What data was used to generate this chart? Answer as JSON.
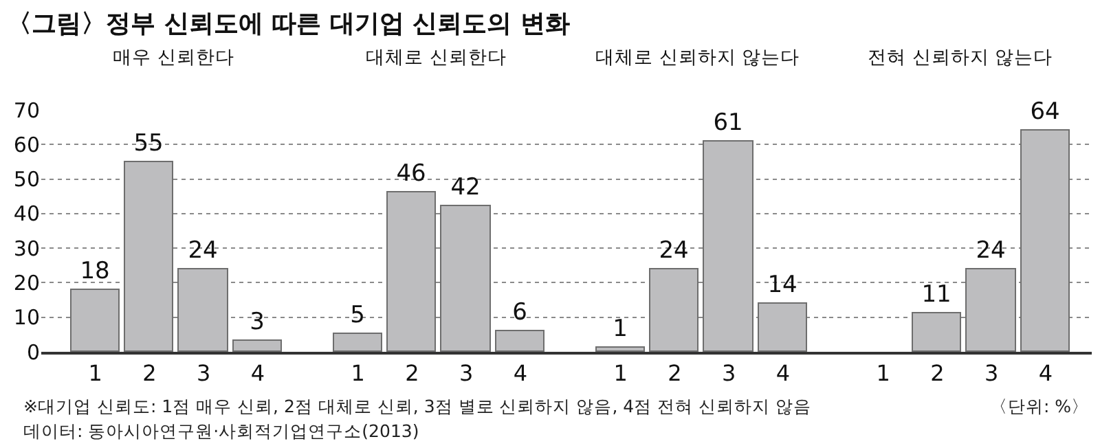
{
  "chart_data": [
    {
      "type": "other",
      "title": "〈그림〉정부 신뢰도에 따른 대기업 신뢰도의 변화",
      "annotations": [
        "※대기업 신뢰도: 1점 매우 신뢰, 2점 대체로 신뢰, 3점 별로 신뢰하지 않음, 4점 전혀 신뢰하지 않음",
        "〈단위: %〉",
        "데이터: 동아시아연구원·사회적기업연구소(2013)"
      ]
    },
    {
      "type": "bar",
      "title": "매우 신뢰한다",
      "categories": [
        "1",
        "2",
        "3",
        "4"
      ],
      "values": [
        18,
        55,
        24,
        3
      ],
      "color": "#bdbdbf",
      "ylim": [
        0,
        70
      ],
      "yticks": [
        0,
        10,
        20,
        30,
        40,
        50,
        60,
        70
      ],
      "grid": "y",
      "line_style": "dotted",
      "data_labels": true
    },
    {
      "type": "bar",
      "title": "대체로 신뢰한다",
      "categories": [
        "1",
        "2",
        "3",
        "4"
      ],
      "values": [
        5,
        46,
        42,
        6
      ],
      "color": "#bdbdbf",
      "ylim": [
        0,
        70
      ],
      "yticks": [
        0,
        10,
        20,
        30,
        40,
        50,
        60,
        70
      ],
      "grid": "y",
      "line_style": "dotted",
      "data_labels": true,
      "tick_labels": "x"
    },
    {
      "type": "bar",
      "title": "대체로 신뢰하지 않는다",
      "categories": [
        "1",
        "2",
        "3",
        "4"
      ],
      "values": [
        1,
        24,
        61,
        14
      ],
      "color": "#bdbdbf",
      "ylim": [
        0,
        70
      ],
      "yticks": [
        0,
        10,
        20,
        30,
        40,
        50,
        60,
        70
      ],
      "grid": "y",
      "line_style": "dotted",
      "data_labels": true,
      "tick_labels": "x"
    },
    {
      "type": "bar",
      "title": "전혀 신뢰하지 않는다",
      "categories": [
        "1",
        "2",
        "3",
        "4"
      ],
      "values": [
        null,
        11,
        24,
        64
      ],
      "color": "#bdbdbf",
      "ylim": [
        0,
        70
      ],
      "yticks": [
        0,
        10,
        20,
        30,
        40,
        50,
        60,
        70
      ],
      "grid": "y",
      "line_style": "dotted",
      "data_labels": true,
      "tick_labels": "x"
    }
  ]
}
